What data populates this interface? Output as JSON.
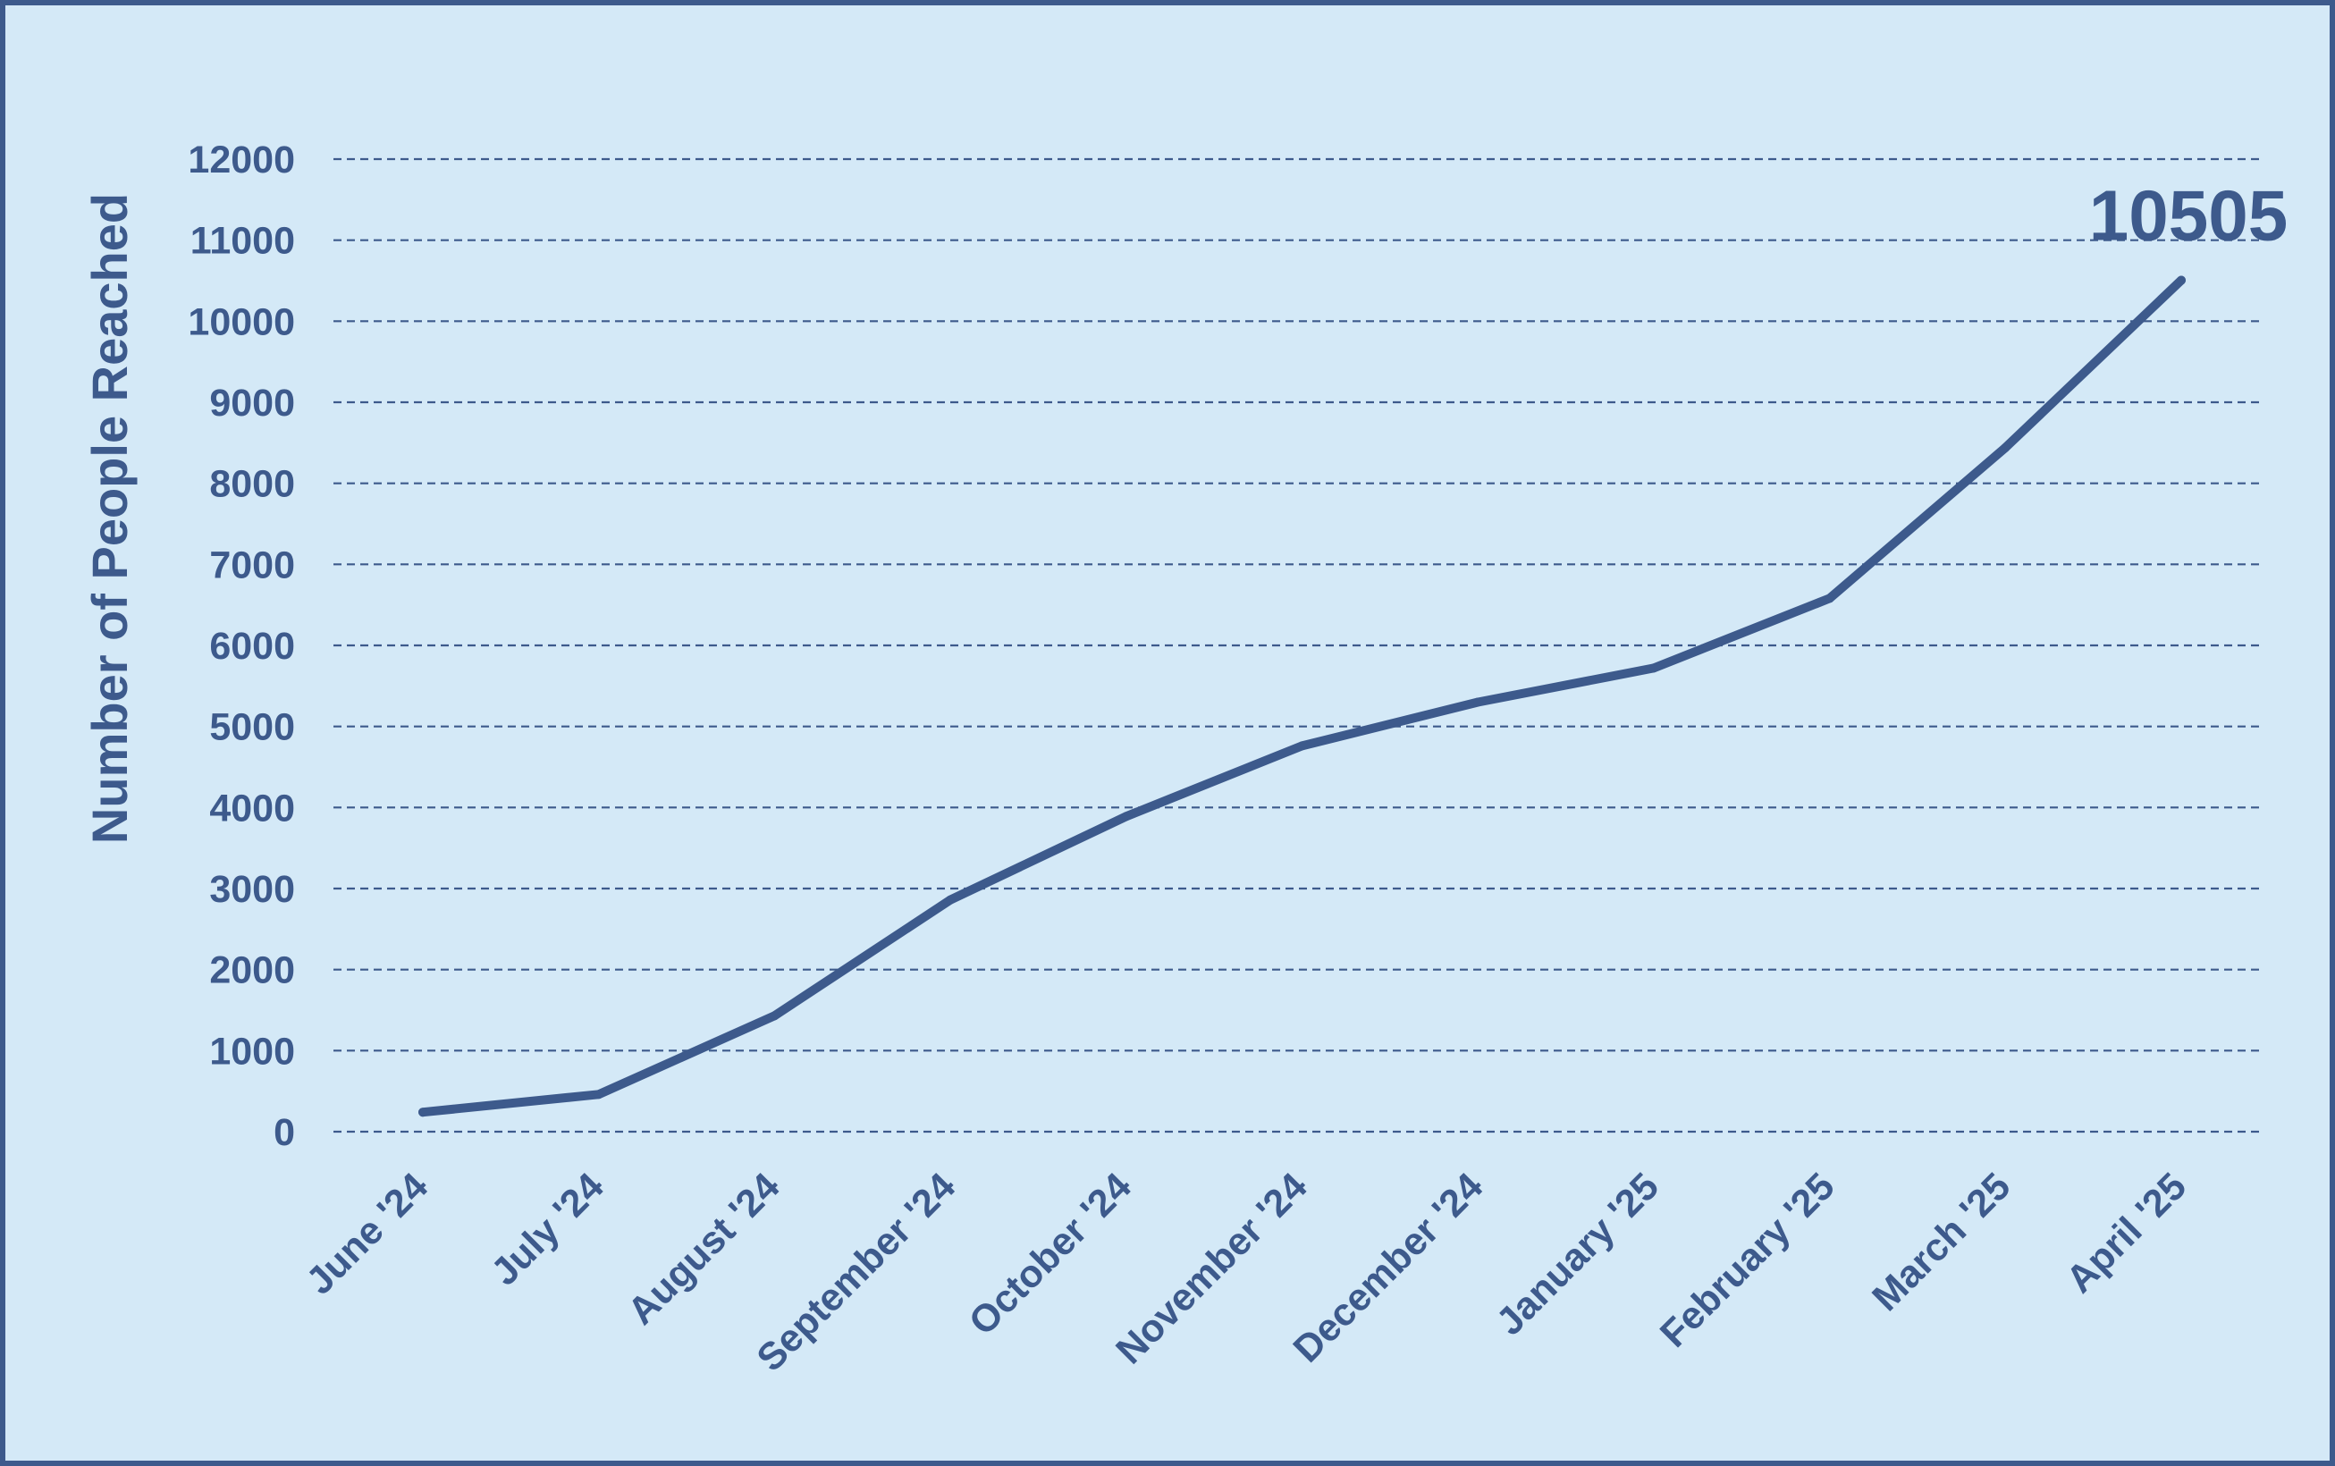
{
  "chart_data": {
    "type": "line",
    "title": "",
    "xlabel": "",
    "ylabel": "Number of People Reached",
    "categories": [
      "June '24",
      "July '24",
      "August '24",
      "September '24",
      "October '24",
      "November '24",
      "December '24",
      "January '25",
      "February '25",
      "March '25",
      "April '25"
    ],
    "series": [
      {
        "values": [
          240,
          460,
          1430,
          2860,
          3890,
          4760,
          5300,
          5720,
          6580,
          8440,
          10505
        ]
      }
    ],
    "yticks": [
      "0",
      "1000",
      "2000",
      "3000",
      "4000",
      "5000",
      "6000",
      "7000",
      "8000",
      "9000",
      "10000",
      "11000",
      "12000"
    ],
    "ylim": [
      0,
      12000
    ],
    "grid": "horizontal dashed",
    "legend": "none",
    "annotations": [
      {
        "text": "10505",
        "category": "April '25",
        "value": 10505
      }
    ],
    "colors": {
      "background": "#d4e9f7",
      "border": "#3d5a8c",
      "line": "#3d5a8c",
      "text": "#3d5a8c",
      "grid": "#3d5a8c"
    }
  }
}
